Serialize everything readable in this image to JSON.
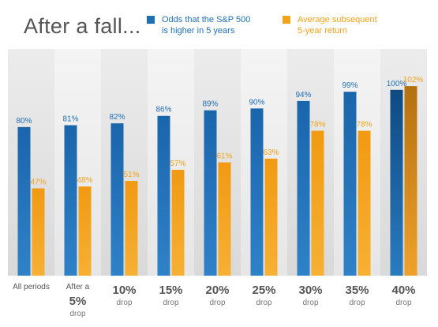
{
  "title": "After a fall...",
  "legend": [
    {
      "name": "Odds that the S&P 500 is higher in 5 years",
      "lines": [
        "Odds that the S&P 500",
        "is higher in 5 years"
      ],
      "color": "#1f6fb5",
      "text_color": "#1f6fb5"
    },
    {
      "name": "Average subsequent 5-year return",
      "lines": [
        "Average subsequent",
        "5-year return"
      ],
      "color": "#f2a21b",
      "text_color": "#f2a21b"
    }
  ],
  "chart_data": {
    "type": "bar",
    "title": "After a fall...",
    "categories": [
      "All periods",
      "After a 5% drop",
      "10% drop",
      "15% drop",
      "20% drop",
      "25% drop",
      "30% drop",
      "35% drop",
      "40% drop"
    ],
    "category_labels": [
      {
        "top": "All periods",
        "main": "",
        "bottom": ""
      },
      {
        "top": "After a",
        "main": "5%",
        "bottom": "drop"
      },
      {
        "top": "",
        "main": "10%",
        "bottom": "drop"
      },
      {
        "top": "",
        "main": "15%",
        "bottom": "drop"
      },
      {
        "top": "",
        "main": "20%",
        "bottom": "drop"
      },
      {
        "top": "",
        "main": "25%",
        "bottom": "drop"
      },
      {
        "top": "",
        "main": "30%",
        "bottom": "drop"
      },
      {
        "top": "",
        "main": "35%",
        "bottom": "drop"
      },
      {
        "top": "",
        "main": "40%",
        "bottom": "drop"
      }
    ],
    "series": [
      {
        "name": "Odds that the S&P 500 is higher in 5 years",
        "color": "#1f6fb5",
        "values": [
          80,
          81,
          82,
          86,
          89,
          90,
          94,
          99,
          100
        ],
        "labels": [
          "80%",
          "81%",
          "82%",
          "86%",
          "89%",
          "90%",
          "94%",
          "99%",
          "100%"
        ]
      },
      {
        "name": "Average subsequent 5-year return",
        "color": "#f2a21b",
        "values": [
          47,
          48,
          51,
          57,
          61,
          63,
          78,
          78,
          102
        ],
        "labels": [
          "47%",
          "48%",
          "51%",
          "57%",
          "61%",
          "63%",
          "78%",
          "78%",
          "102%"
        ]
      }
    ],
    "ylim": [
      0,
      110
    ],
    "grid": false,
    "legend_position": "top"
  }
}
